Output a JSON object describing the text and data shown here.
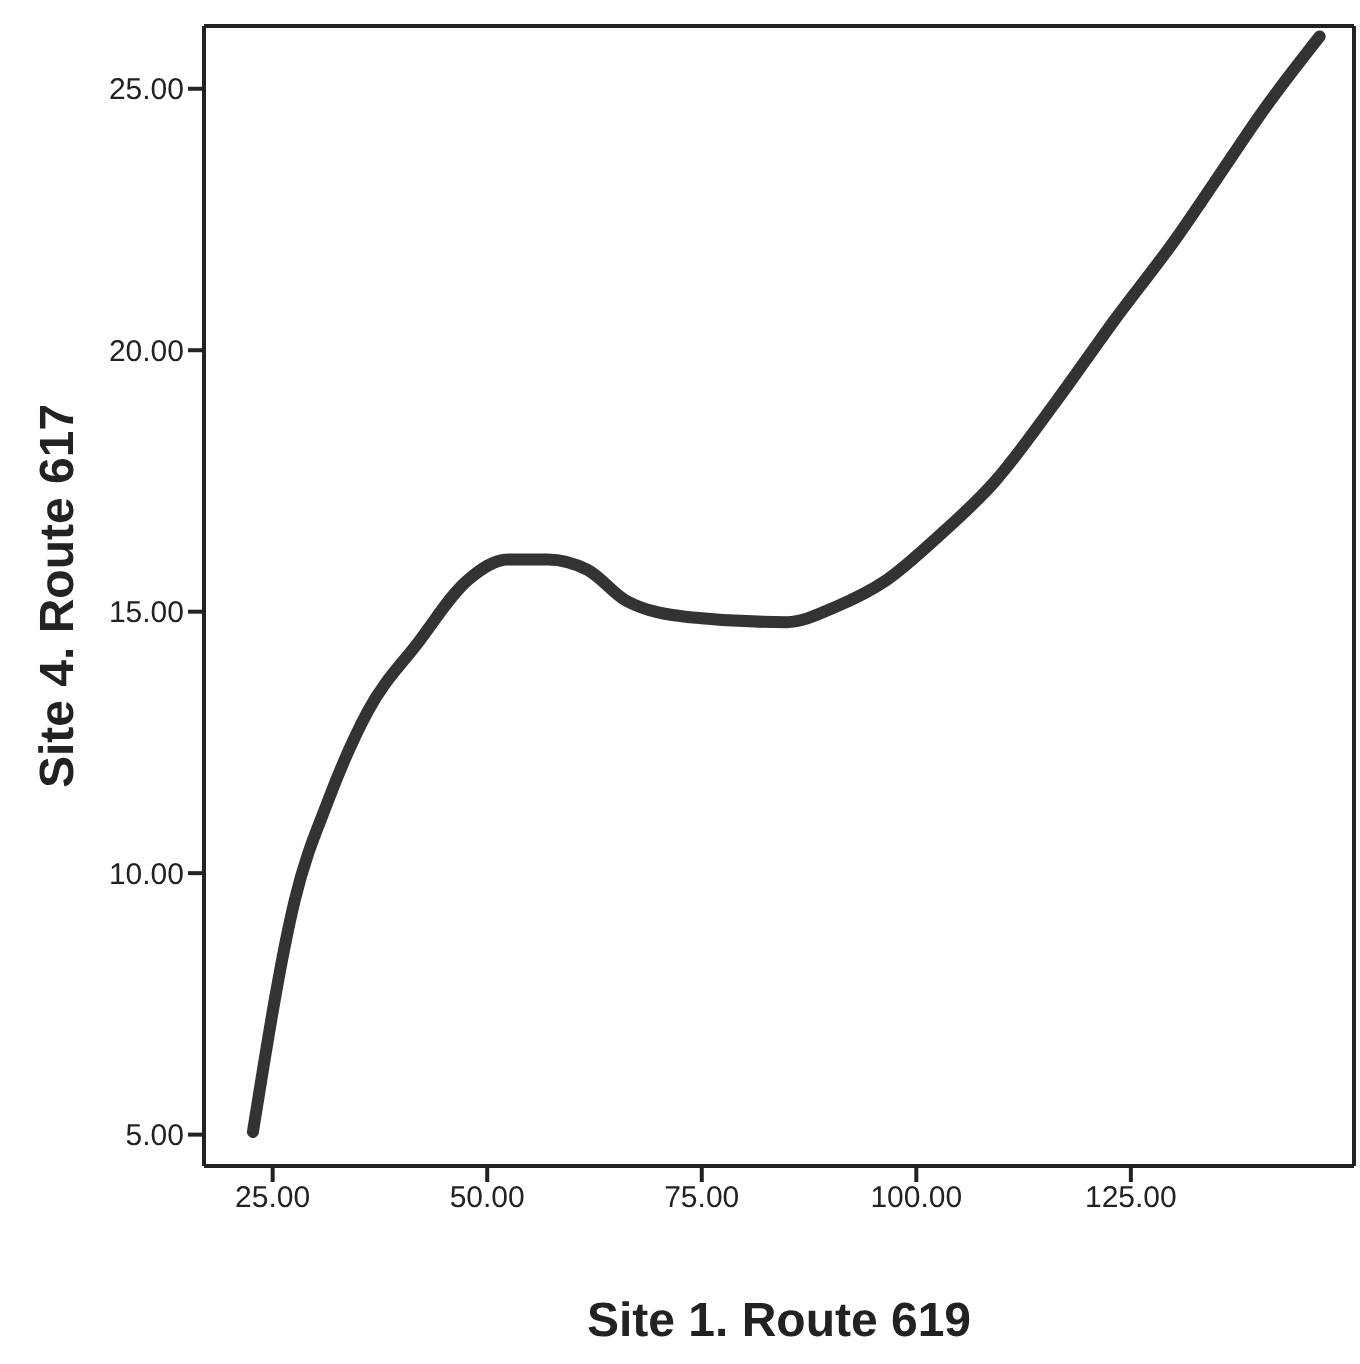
{
  "chart_data": {
    "type": "line",
    "xlabel": "Site 1. Route 619",
    "ylabel": "Site 4. Route 617",
    "x": [
      22.7,
      27.6,
      31.5,
      36.1,
      41.9,
      47.7,
      52.4,
      57.0,
      61.7,
      66.3,
      73.3,
      84.9,
      90.7,
      96.5,
      102.3,
      109.2,
      116.2,
      123.2,
      130.1,
      134.7,
      140.5,
      147.0
    ],
    "series": [
      {
        "color": "#333333",
        "values": [
          5.05,
          9.5,
          11.4,
          13.1,
          14.4,
          15.6,
          16.0,
          16.0,
          15.8,
          15.2,
          14.9,
          14.8,
          15.1,
          15.6,
          16.4,
          17.5,
          19.0,
          20.6,
          22.1,
          23.2,
          24.6,
          26.0
        ]
      }
    ],
    "xlim": [
      17,
      151
    ],
    "ylim": [
      4.4,
      26.2
    ],
    "xticks": [
      {
        "value": 25,
        "label": "25.00"
      },
      {
        "value": 50,
        "label": "50.00"
      },
      {
        "value": 75,
        "label": "75.00"
      },
      {
        "value": 100,
        "label": "100.00"
      },
      {
        "value": 125,
        "label": "125.00"
      }
    ],
    "yticks": [
      {
        "value": 5,
        "label": "5.00"
      },
      {
        "value": 10,
        "label": "10.00"
      },
      {
        "value": 15,
        "label": "15.00"
      },
      {
        "value": 20,
        "label": "20.00"
      },
      {
        "value": 25,
        "label": "25.00"
      }
    ],
    "grid": false,
    "legend": false,
    "marker": "none",
    "line_style": "solid"
  }
}
